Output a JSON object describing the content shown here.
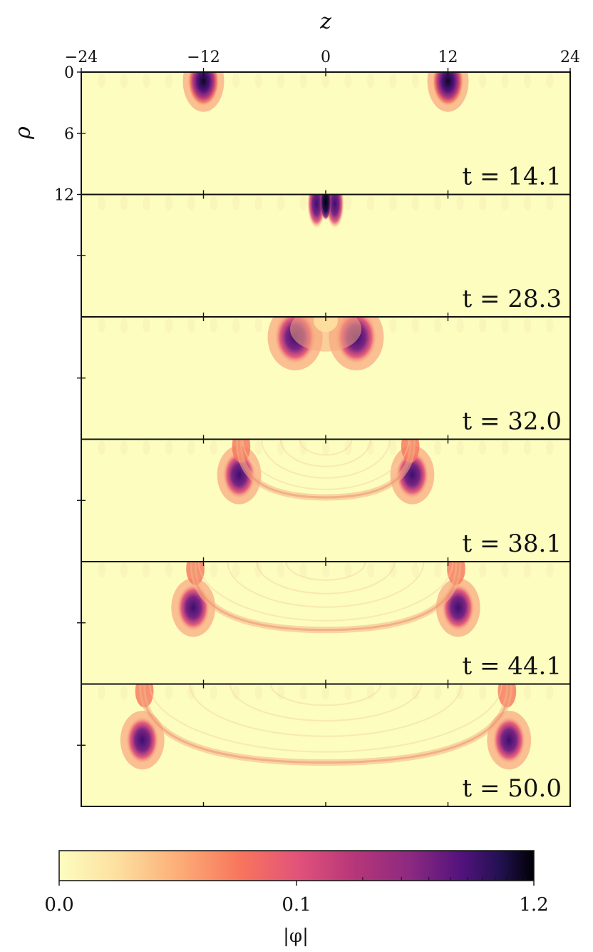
{
  "chart_data": {
    "type": "heatmap",
    "xlabel": "z",
    "ylabel": "ρ",
    "xlim": [
      -24,
      24
    ],
    "ylim": [
      0,
      12
    ],
    "x_ticks": [
      {
        "value": -24,
        "label": "−24"
      },
      {
        "value": -12,
        "label": "−12"
      },
      {
        "value": 0,
        "label": "0"
      },
      {
        "value": 12,
        "label": "12"
      },
      {
        "value": 24,
        "label": "24"
      }
    ],
    "y_ticks": [
      {
        "value": 0,
        "label": "0"
      },
      {
        "value": 6,
        "label": "6"
      },
      {
        "value": 12,
        "label": "12"
      }
    ],
    "colormap": "magma_r",
    "colors": {
      "low": "#fcfdbf",
      "mid": "#e3537a",
      "high": "#000004"
    },
    "colorbar": {
      "label": "|φ|",
      "ticks": [
        {
          "value": 0.0,
          "label": "0.0"
        },
        {
          "value": 0.1,
          "label": "0.1"
        },
        {
          "value": 1.2,
          "label": "1.2"
        }
      ],
      "scale": "symlog",
      "range": [
        0.0,
        1.2
      ]
    },
    "panels": [
      {
        "t": 14.1,
        "label": "t = 14.1",
        "blobs": [
          {
            "z": -12,
            "rho": 0.9,
            "intensity": 0.95,
            "type": "peak"
          },
          {
            "z": 12,
            "rho": 0.9,
            "intensity": 0.95,
            "type": "peak"
          }
        ]
      },
      {
        "t": 28.3,
        "label": "t = 28.3",
        "blobs": [
          {
            "z": 0,
            "rho": 0.9,
            "intensity": 1.0,
            "type": "collision"
          }
        ]
      },
      {
        "t": 32.0,
        "label": "t = 32.0",
        "blobs": [
          {
            "z": -3,
            "rho": 2.0,
            "intensity": 0.8,
            "type": "peak"
          },
          {
            "z": 3,
            "rho": 2.0,
            "intensity": 0.8,
            "type": "peak"
          },
          {
            "z": 0,
            "rho": 1.5,
            "intensity": 0.35,
            "type": "shell"
          }
        ]
      },
      {
        "t": 38.1,
        "label": "t = 38.1",
        "blobs": [
          {
            "z": -8.5,
            "rho": 3.5,
            "intensity": 0.72,
            "type": "peak"
          },
          {
            "z": 8.5,
            "rho": 3.5,
            "intensity": 0.72,
            "type": "peak"
          },
          {
            "z": 0,
            "rho": 0,
            "intensity": 0.3,
            "type": "shell"
          }
        ]
      },
      {
        "t": 44.1,
        "label": "t = 44.1",
        "blobs": [
          {
            "z": -13,
            "rho": 4.5,
            "intensity": 0.72,
            "type": "peak"
          },
          {
            "z": 13,
            "rho": 4.5,
            "intensity": 0.72,
            "type": "peak"
          },
          {
            "z": 0,
            "rho": 0,
            "intensity": 0.28,
            "type": "shell"
          }
        ]
      },
      {
        "t": 50.0,
        "label": "t = 50.0",
        "blobs": [
          {
            "z": -18,
            "rho": 5.5,
            "intensity": 0.75,
            "type": "peak"
          },
          {
            "z": 18,
            "rho": 5.5,
            "intensity": 0.75,
            "type": "peak"
          },
          {
            "z": 0,
            "rho": 0,
            "intensity": 0.28,
            "type": "shell"
          }
        ]
      }
    ]
  }
}
